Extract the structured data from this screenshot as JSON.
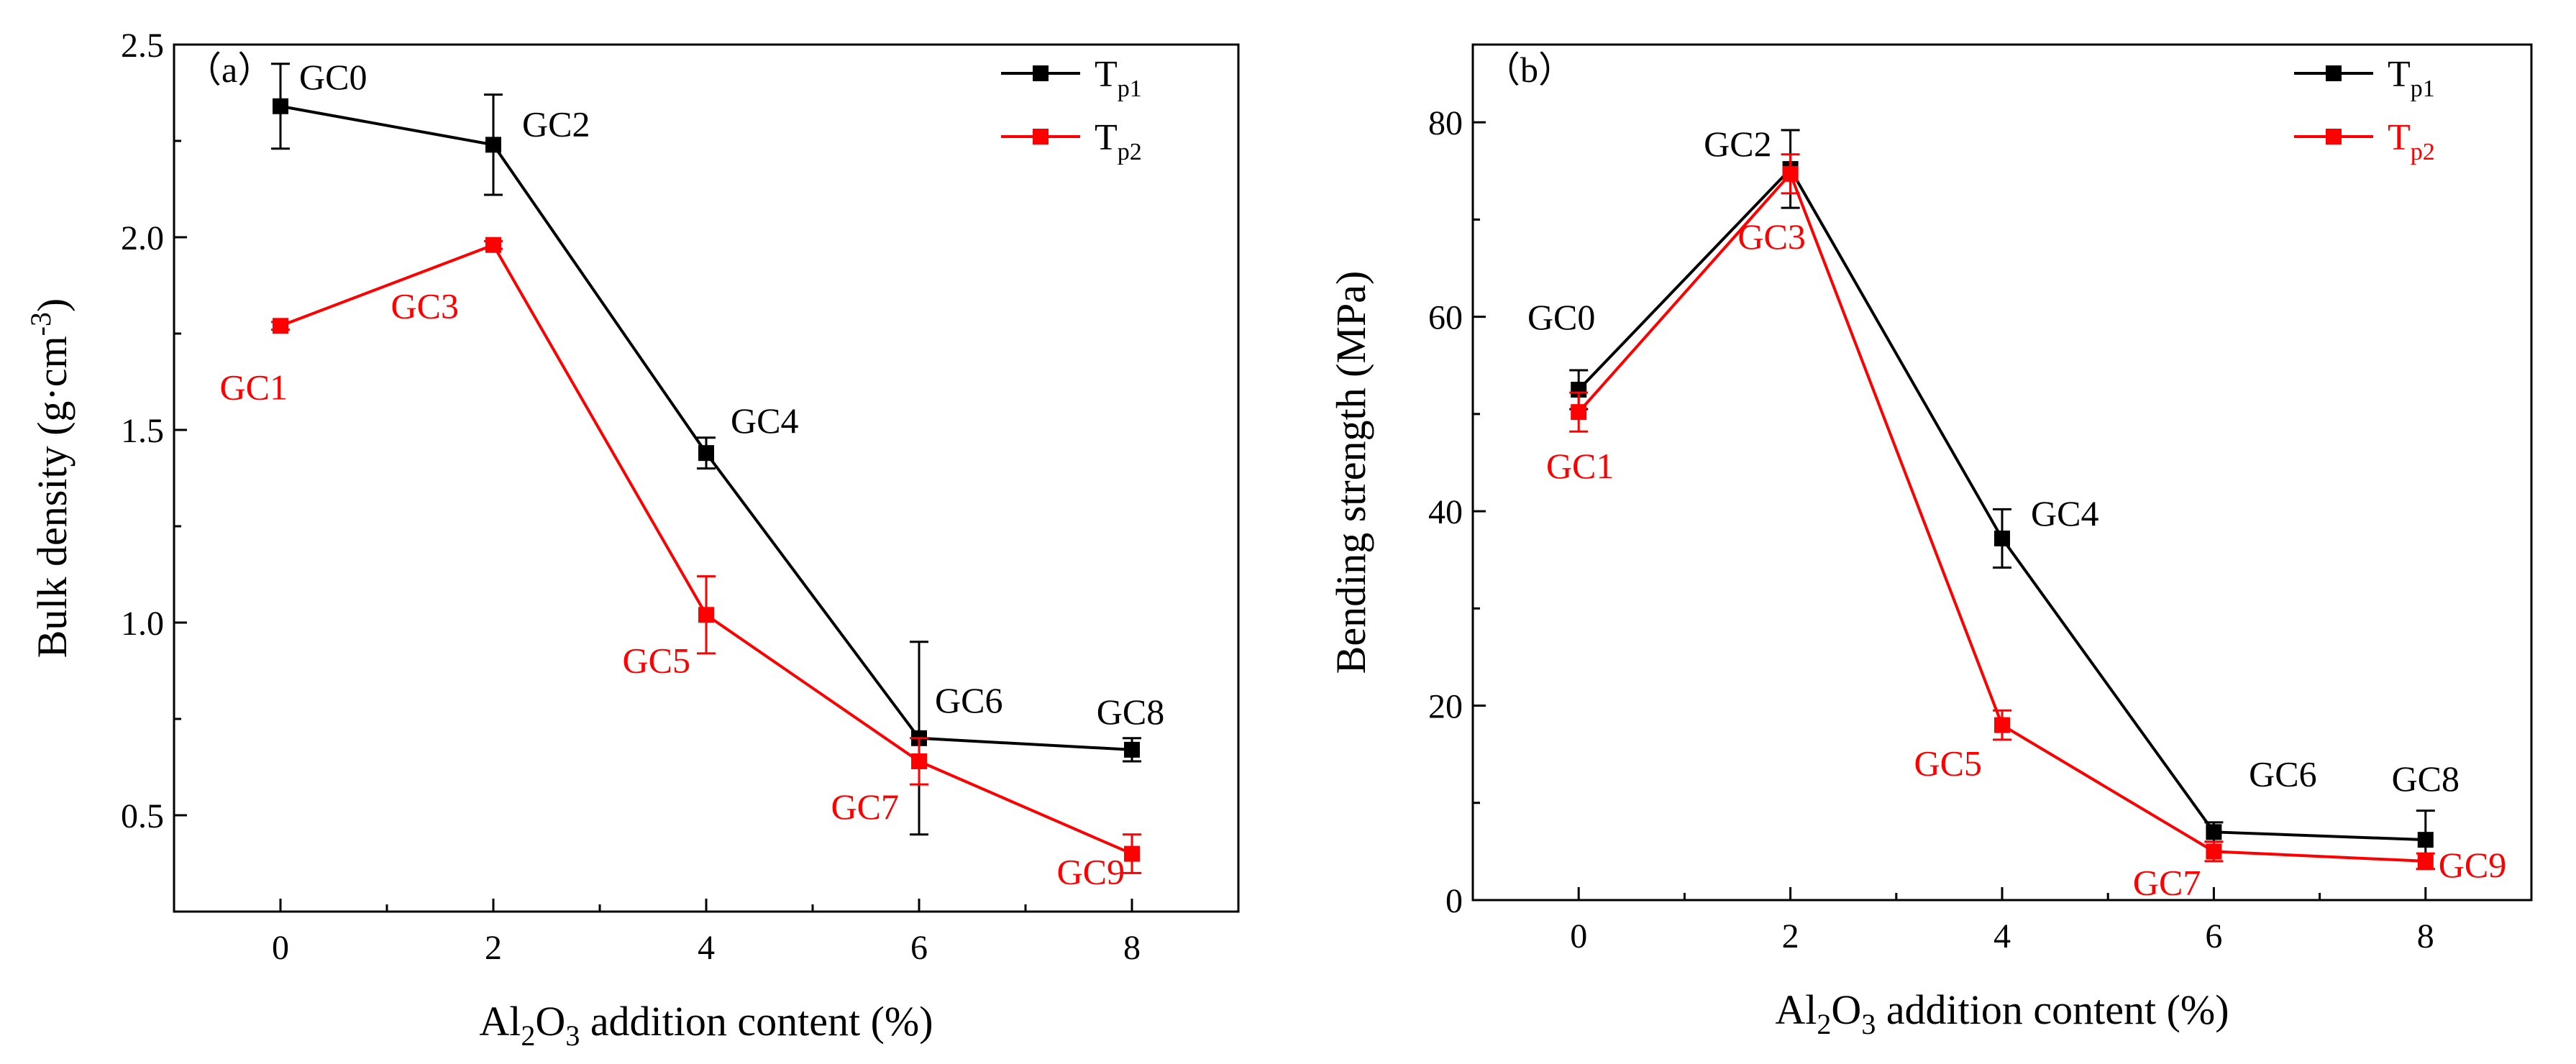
{
  "chart_data": [
    {
      "type": "line",
      "panel_label": "（a）",
      "ylabel": "Bulk density (g·cm",
      "ylabel_sup": "-3",
      "ylabel_close": ")",
      "xlabel": {
        "pre": "Al",
        "sub1": "2",
        "mid": "O",
        "sub2": "3",
        "post": " addition content (%)"
      },
      "xlim": [
        -1,
        9
      ],
      "ylim": [
        0.25,
        2.5
      ],
      "x_ticks": [
        0,
        2,
        4,
        6,
        8
      ],
      "x_tick_labels": [
        "0",
        "2",
        "4",
        "6",
        "8"
      ],
      "y_ticks": [
        0.5,
        1.0,
        1.5,
        2.0,
        2.5
      ],
      "y_tick_labels": [
        "0.5",
        "1.0",
        "1.5",
        "2.0",
        "2.5"
      ],
      "legend": [
        {
          "name": "T",
          "sub": "p1",
          "color": "#000000",
          "text_color": "#000000"
        },
        {
          "name": "T",
          "sub": "p2",
          "color": "#ff0000",
          "text_color": "#000000"
        }
      ],
      "series": [
        {
          "name": "Tp1",
          "color": "#000000",
          "x": [
            0,
            2,
            4,
            6,
            8
          ],
          "y": [
            2.34,
            2.24,
            1.44,
            0.7,
            0.67
          ],
          "err": [
            0.11,
            0.13,
            0.04,
            0.25,
            0.03
          ],
          "labels": [
            "GC0",
            "GC2",
            "GC4",
            "GC6",
            "GC8"
          ]
        },
        {
          "name": "Tp2",
          "color": "#ff0000",
          "x": [
            0,
            2,
            4,
            6,
            8
          ],
          "y": [
            1.77,
            1.98,
            1.02,
            0.64,
            0.4
          ],
          "err": [
            0.01,
            0.01,
            0.1,
            0.06,
            0.05
          ],
          "labels": [
            "GC1",
            "GC3",
            "GC5",
            "GC7",
            "GC9"
          ]
        }
      ]
    },
    {
      "type": "line",
      "panel_label": "（b）",
      "ylabel": "Bending strength (MPa)",
      "ylabel_sup": "",
      "ylabel_close": "",
      "xlabel": {
        "pre": "Al",
        "sub1": "2",
        "mid": "O",
        "sub2": "3",
        "post": " addition content (%)"
      },
      "xlim": [
        -1,
        9
      ],
      "ylim": [
        0,
        88
      ],
      "x_ticks": [
        0,
        2,
        4,
        6,
        8
      ],
      "x_tick_labels": [
        "0",
        "2",
        "4",
        "6",
        "8"
      ],
      "y_ticks": [
        0,
        20,
        40,
        60,
        80
      ],
      "y_tick_labels": [
        "0",
        "20",
        "40",
        "60",
        "80"
      ],
      "legend": [
        {
          "name": "T",
          "sub": "p1",
          "color": "#000000",
          "text_color": "#000000"
        },
        {
          "name": "T",
          "sub": "p2",
          "color": "#ff0000",
          "text_color": "#ff0000"
        }
      ],
      "series": [
        {
          "name": "Tp1",
          "color": "#000000",
          "x": [
            0,
            2,
            4,
            6,
            8
          ],
          "y": [
            52.5,
            75.2,
            37.2,
            7.0,
            6.2
          ],
          "err": [
            2.0,
            4.0,
            3.0,
            1.0,
            3.0
          ],
          "labels": [
            "GC0",
            "GC2",
            "GC4",
            "GC6",
            "GC8"
          ]
        },
        {
          "name": "Tp2",
          "color": "#ff0000",
          "x": [
            0,
            2,
            4,
            6,
            8
          ],
          "y": [
            50.2,
            74.7,
            18.0,
            5.0,
            4.0
          ],
          "err": [
            2.0,
            2.0,
            1.5,
            1.0,
            0.8
          ],
          "labels": [
            "GC1",
            "GC3",
            "GC5",
            "GC7",
            "GC9"
          ]
        }
      ]
    }
  ]
}
